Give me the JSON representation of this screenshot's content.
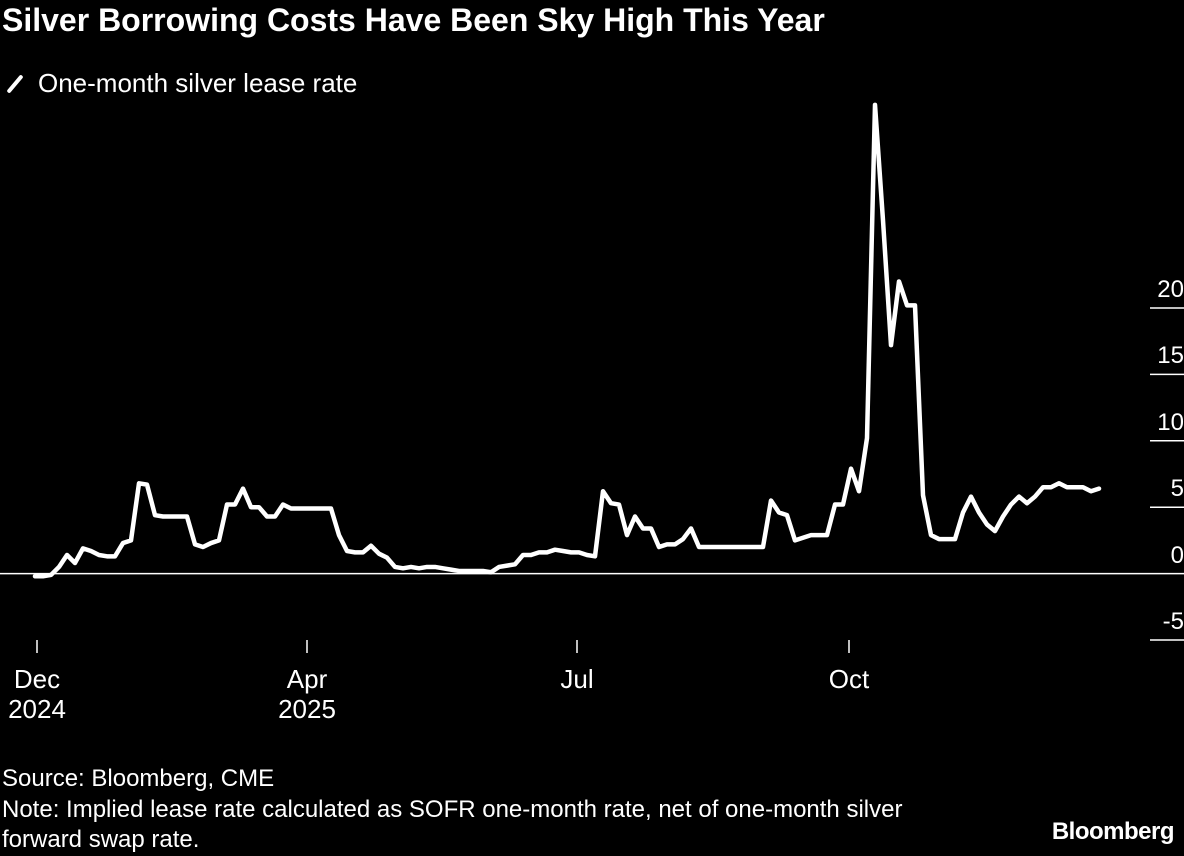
{
  "chart_data": {
    "type": "line",
    "title": "Silver Borrowing Costs Have Been Sky High This Year",
    "source": "Source: Bloomberg, CME",
    "note": "Note: Implied lease rate calculated as SOFR one-month rate, net of one-month silver forward swap rate.",
    "brand": "Bloomberg",
    "series": [
      {
        "name": "One-month silver lease rate",
        "color": "#ffffff",
        "values": [
          -0.2,
          -0.2,
          -0.1,
          0.5,
          1.4,
          0.8,
          1.9,
          1.7,
          1.4,
          1.3,
          1.3,
          2.3,
          2.5,
          6.8,
          6.7,
          4.4,
          4.3,
          4.3,
          4.3,
          4.3,
          2.2,
          2.0,
          2.3,
          2.5,
          5.2,
          5.2,
          6.4,
          5.0,
          5.0,
          4.3,
          4.3,
          5.2,
          4.9,
          4.9,
          4.9,
          4.9,
          4.9,
          4.9,
          2.9,
          1.7,
          1.6,
          1.6,
          2.1,
          1.5,
          1.2,
          0.5,
          0.4,
          0.5,
          0.4,
          0.5,
          0.5,
          0.4,
          0.3,
          0.2,
          0.2,
          0.2,
          0.2,
          0.1,
          0.5,
          0.6,
          0.7,
          1.4,
          1.4,
          1.6,
          1.6,
          1.8,
          1.7,
          1.6,
          1.6,
          1.4,
          1.3,
          6.2,
          5.3,
          5.2,
          2.9,
          4.3,
          3.4,
          3.4,
          2.0,
          2.2,
          2.2,
          2.6,
          3.4,
          2.0,
          2.0,
          2.0,
          2.0,
          2.0,
          2.0,
          2.0,
          2.0,
          2.0,
          5.5,
          4.6,
          4.4,
          2.5,
          2.7,
          2.9,
          2.9,
          2.9,
          5.2,
          5.2,
          7.9,
          6.2,
          10.2,
          35.3,
          26.6,
          17.2,
          22.0,
          20.2,
          20.2,
          5.9,
          2.9,
          2.6,
          2.6,
          2.6,
          4.6,
          5.8,
          4.6,
          3.7,
          3.2,
          4.3,
          5.2,
          5.8,
          5.3,
          5.8,
          6.5,
          6.5,
          6.8,
          6.5,
          6.5,
          6.5,
          6.2,
          6.4
        ]
      }
    ],
    "xlim": [
      0,
      133
    ],
    "xticks": [
      {
        "value": 0.25,
        "label": "Dec\n2024"
      },
      {
        "value": 34,
        "label": "Apr\n2025"
      },
      {
        "value": 67.75,
        "label": "Jul"
      },
      {
        "value": 101.75,
        "label": "Oct"
      }
    ],
    "ylim": [
      -5,
      36
    ],
    "yticks": [
      -5,
      0,
      5,
      10,
      15,
      20
    ],
    "y_axis_side": "right"
  }
}
